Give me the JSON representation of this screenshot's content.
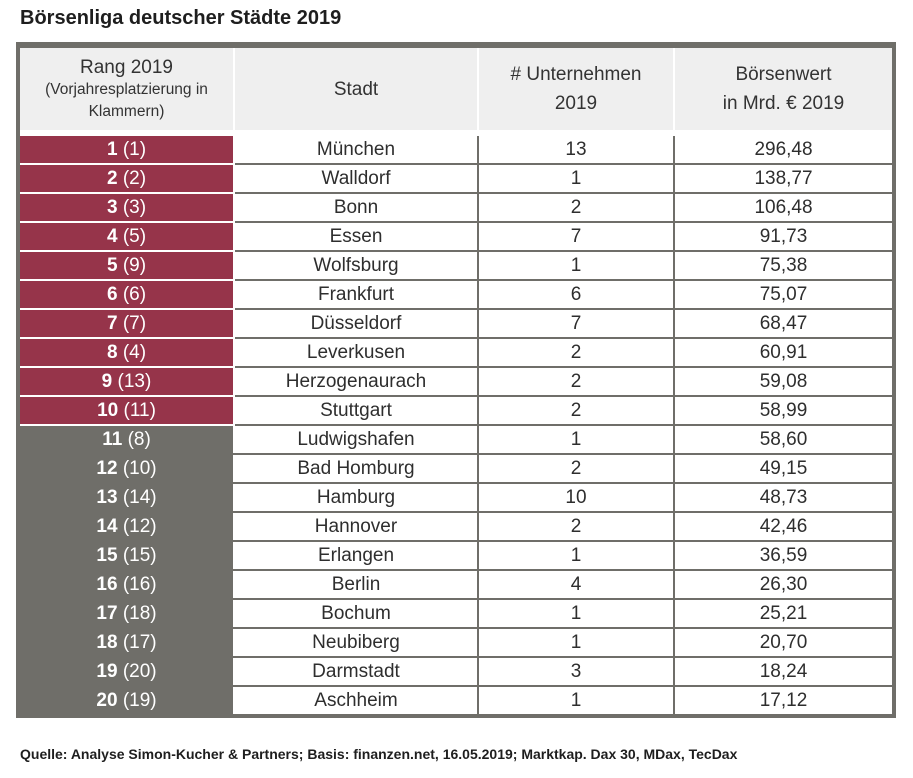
{
  "title": "Börsenliga deutscher Städte 2019",
  "headers": {
    "rank_main": "Rang 2019",
    "rank_sub": "(Vorjahresplatzierung in Klammern)",
    "city": "Stadt",
    "companies_line1": "# Unternehmen",
    "companies_line2": "2019",
    "value_line1": "Börsenwert",
    "value_line2": "in Mrd. € 2019"
  },
  "colors": {
    "top10": "#96344a",
    "rest": "#6f6e69",
    "header_bg": "#efefef"
  },
  "rows": [
    {
      "rank": "1",
      "prev": "(1)",
      "city": "München",
      "companies": "13",
      "value": "296,48"
    },
    {
      "rank": "2",
      "prev": "(2)",
      "city": "Walldorf",
      "companies": "1",
      "value": "138,77"
    },
    {
      "rank": "3",
      "prev": "(3)",
      "city": "Bonn",
      "companies": "2",
      "value": "106,48"
    },
    {
      "rank": "4",
      "prev": "(5)",
      "city": "Essen",
      "companies": "7",
      "value": "91,73"
    },
    {
      "rank": "5",
      "prev": "(9)",
      "city": "Wolfsburg",
      "companies": "1",
      "value": "75,38"
    },
    {
      "rank": "6",
      "prev": "(6)",
      "city": "Frankfurt",
      "companies": "6",
      "value": "75,07"
    },
    {
      "rank": "7",
      "prev": "(7)",
      "city": "Düsseldorf",
      "companies": "7",
      "value": "68,47"
    },
    {
      "rank": "8",
      "prev": "(4)",
      "city": "Leverkusen",
      "companies": "2",
      "value": "60,91"
    },
    {
      "rank": "9",
      "prev": "(13)",
      "city": "Herzogenaurach",
      "companies": "2",
      "value": "59,08"
    },
    {
      "rank": "10",
      "prev": "(11)",
      "city": "Stuttgart",
      "companies": "2",
      "value": "58,99"
    },
    {
      "rank": "11",
      "prev": "(8)",
      "city": "Ludwigshafen",
      "companies": "1",
      "value": "58,60"
    },
    {
      "rank": "12",
      "prev": "(10)",
      "city": "Bad Homburg",
      "companies": "2",
      "value": "49,15"
    },
    {
      "rank": "13",
      "prev": "(14)",
      "city": "Hamburg",
      "companies": "10",
      "value": "48,73"
    },
    {
      "rank": "14",
      "prev": "(12)",
      "city": "Hannover",
      "companies": "2",
      "value": "42,46"
    },
    {
      "rank": "15",
      "prev": "(15)",
      "city": "Erlangen",
      "companies": "1",
      "value": "36,59"
    },
    {
      "rank": "16",
      "prev": "(16)",
      "city": "Berlin",
      "companies": "4",
      "value": "26,30"
    },
    {
      "rank": "17",
      "prev": "(18)",
      "city": "Bochum",
      "companies": "1",
      "value": "25,21"
    },
    {
      "rank": "18",
      "prev": "(17)",
      "city": "Neubiberg",
      "companies": "1",
      "value": "20,70"
    },
    {
      "rank": "19",
      "prev": "(20)",
      "city": "Darmstadt",
      "companies": "3",
      "value": "18,24"
    },
    {
      "rank": "20",
      "prev": "(19)",
      "city": "Aschheim",
      "companies": "1",
      "value": "17,12"
    }
  ],
  "source": "Quelle: Analyse Simon-Kucher & Partners; Basis: finanzen.net, 16.05.2019; Marktkap. Dax 30, MDax, TecDax"
}
